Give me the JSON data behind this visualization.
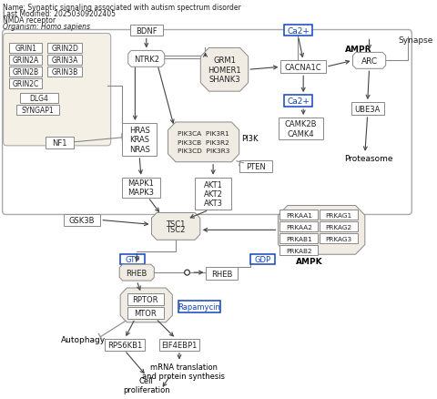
{
  "bg": "#ffffff",
  "fig_w": 4.8,
  "fig_h": 4.39,
  "dpi": 100,
  "header": [
    "Name: Synaptic signaling associated with autism spectrum disorder",
    "Last Modified: 20250309202405",
    "NMDA receptor",
    "Organism: Homo sapiens"
  ]
}
